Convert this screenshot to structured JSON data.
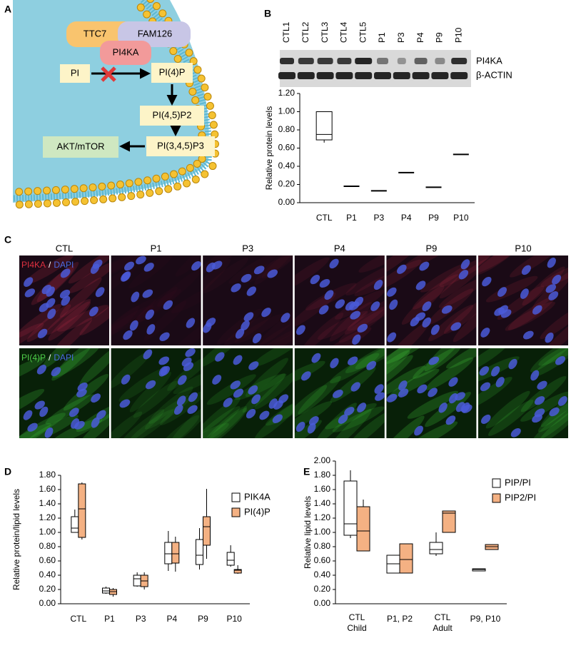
{
  "panel_labels": [
    "A",
    "B",
    "C",
    "D",
    "E"
  ],
  "diagram": {
    "complex": [
      "TTC7",
      "FAM126"
    ],
    "enzyme": "PI4KA",
    "nodes": [
      "PI",
      "PI(4)P",
      "PI(4,5)P2",
      "PI(3,4,5)P3",
      "AKT/mTOR"
    ]
  },
  "blot": {
    "lanes": [
      "CTL1",
      "CTL2",
      "CTL3",
      "CTL4",
      "CTL5",
      "P1",
      "P3",
      "P4",
      "P9",
      "P10"
    ],
    "bands": [
      "PI4KA",
      "β-ACTIN"
    ]
  },
  "micrographs": {
    "columns": [
      "CTL",
      "P1",
      "P3",
      "P4",
      "P9",
      "P10"
    ],
    "rows": [
      {
        "stain": "PI4KA",
        "sep": "/",
        "counter": "DAPI"
      },
      {
        "stain": "PI(4)P",
        "sep": "/",
        "counter": "DAPI"
      }
    ]
  },
  "chart_data": [
    {
      "type": "box",
      "ylabel": "Relative protein levels",
      "categories": [
        "CTL",
        "P1",
        "P3",
        "P4",
        "P9",
        "P10"
      ],
      "color": "#ffffff",
      "boxes": [
        {
          "min": 0.66,
          "q1": 0.69,
          "median": 0.75,
          "q3": 1.0,
          "max": 1.0
        },
        {
          "min": 0.18,
          "q1": 0.18,
          "median": 0.18,
          "q3": 0.18,
          "max": 0.18
        },
        {
          "min": 0.13,
          "q1": 0.13,
          "median": 0.13,
          "q3": 0.13,
          "max": 0.13
        },
        {
          "min": 0.33,
          "q1": 0.33,
          "median": 0.33,
          "q3": 0.33,
          "max": 0.33
        },
        {
          "min": 0.17,
          "q1": 0.17,
          "median": 0.17,
          "q3": 0.17,
          "max": 0.17
        },
        {
          "min": 0.53,
          "q1": 0.53,
          "median": 0.53,
          "q3": 0.53,
          "max": 0.53
        }
      ],
      "ylim": [
        0,
        1.2
      ],
      "yticks": [
        {
          "value": 0,
          "label": "0.00"
        },
        {
          "value": 0.2,
          "label": "0.20"
        },
        {
          "value": 0.4,
          "label": "0.40"
        },
        {
          "value": 0.6,
          "label": "0.60"
        },
        {
          "value": 0.8,
          "label": "0.80"
        },
        {
          "value": 1.0,
          "label": "1.00"
        },
        {
          "value": 1.2,
          "label": "1.20"
        }
      ]
    },
    {
      "type": "box",
      "ylabel": "Relative protein/lipid levels",
      "categories": [
        "CTL",
        "P1",
        "P3",
        "P4",
        "P9",
        "P10"
      ],
      "series": [
        {
          "name": "PIK4A",
          "color": "#ffffff",
          "boxes": [
            {
              "min": 1.0,
              "q1": 1.0,
              "median": 1.06,
              "q3": 1.22,
              "max": 1.32
            },
            {
              "min": 0.14,
              "q1": 0.15,
              "median": 0.18,
              "q3": 0.22,
              "max": 0.24
            },
            {
              "min": 0.24,
              "q1": 0.25,
              "median": 0.35,
              "q3": 0.4,
              "max": 0.44
            },
            {
              "min": 0.46,
              "q1": 0.56,
              "median": 0.7,
              "q3": 0.86,
              "max": 1.02
            },
            {
              "min": 0.48,
              "q1": 0.55,
              "median": 0.68,
              "q3": 0.9,
              "max": 1.06
            },
            {
              "min": 0.52,
              "q1": 0.54,
              "median": 0.61,
              "q3": 0.72,
              "max": 0.82
            }
          ]
        },
        {
          "name": "PI(4)P",
          "color": "#f4b183",
          "boxes": [
            {
              "min": 0.9,
              "q1": 0.93,
              "median": 1.33,
              "q3": 1.68,
              "max": 1.7
            },
            {
              "min": 0.1,
              "q1": 0.13,
              "median": 0.17,
              "q3": 0.2,
              "max": 0.22
            },
            {
              "min": 0.2,
              "q1": 0.24,
              "median": 0.32,
              "q3": 0.4,
              "max": 0.44
            },
            {
              "min": 0.45,
              "q1": 0.57,
              "median": 0.7,
              "q3": 0.86,
              "max": 0.94
            },
            {
              "min": 0.63,
              "q1": 0.82,
              "median": 1.08,
              "q3": 1.22,
              "max": 1.61
            },
            {
              "min": 0.42,
              "q1": 0.43,
              "median": 0.47,
              "q3": 0.48,
              "max": 0.54
            }
          ]
        }
      ],
      "ylim": [
        0,
        1.8
      ],
      "yticks": [
        {
          "value": 0,
          "label": "0.00"
        },
        {
          "value": 0.2,
          "label": "0.20"
        },
        {
          "value": 0.4,
          "label": "0.40"
        },
        {
          "value": 0.6,
          "label": "0.60"
        },
        {
          "value": 0.8,
          "label": "0.80"
        },
        {
          "value": 1.0,
          "label": "1.00"
        },
        {
          "value": 1.2,
          "label": "1.20"
        },
        {
          "value": 1.4,
          "label": "1.40"
        },
        {
          "value": 1.6,
          "label": "1.60"
        },
        {
          "value": 1.8,
          "label": "1.80"
        }
      ],
      "legend": "upper right"
    },
    {
      "type": "box",
      "ylabel": "Relative lipid levels",
      "categories": [
        "CTL Child",
        "P1, P2",
        "CTL Adult",
        "P9, P10"
      ],
      "series": [
        {
          "name": "PIP/PI",
          "color": "#ffffff",
          "boxes": [
            {
              "min": 0.92,
              "q1": 0.96,
              "median": 1.12,
              "q3": 1.72,
              "max": 1.87
            },
            {
              "min": 0.43,
              "q1": 0.43,
              "median": 0.56,
              "q3": 0.68,
              "max": 0.68
            },
            {
              "min": 0.67,
              "q1": 0.7,
              "median": 0.76,
              "q3": 0.86,
              "max": 1.0
            },
            {
              "min": 0.46,
              "q1": 0.46,
              "median": 0.48,
              "q3": 0.49,
              "max": 0.49
            }
          ]
        },
        {
          "name": "PIP2/PI",
          "color": "#f4b183",
          "boxes": [
            {
              "min": 0.74,
              "q1": 0.74,
              "median": 1.02,
              "q3": 1.36,
              "max": 1.46
            },
            {
              "min": 0.43,
              "q1": 0.43,
              "median": 0.62,
              "q3": 0.84,
              "max": 0.84
            },
            {
              "min": 1.0,
              "q1": 1.0,
              "median": 1.27,
              "q3": 1.3,
              "max": 1.3
            },
            {
              "min": 0.76,
              "q1": 0.76,
              "median": 0.8,
              "q3": 0.83,
              "max": 0.83
            }
          ]
        }
      ],
      "ylim": [
        0,
        2.0
      ],
      "yticks": [
        {
          "value": 0,
          "label": "0.00"
        },
        {
          "value": 0.2,
          "label": "0.20"
        },
        {
          "value": 0.4,
          "label": "0.40"
        },
        {
          "value": 0.6,
          "label": "0.60"
        },
        {
          "value": 0.8,
          "label": "0.80"
        },
        {
          "value": 1.0,
          "label": "1.00"
        },
        {
          "value": 1.2,
          "label": "1.20"
        },
        {
          "value": 1.4,
          "label": "1.40"
        },
        {
          "value": 1.6,
          "label": "1.60"
        },
        {
          "value": 1.8,
          "label": "1.80"
        },
        {
          "value": 2.0,
          "label": "2.00"
        }
      ],
      "legend": "upper right"
    }
  ]
}
